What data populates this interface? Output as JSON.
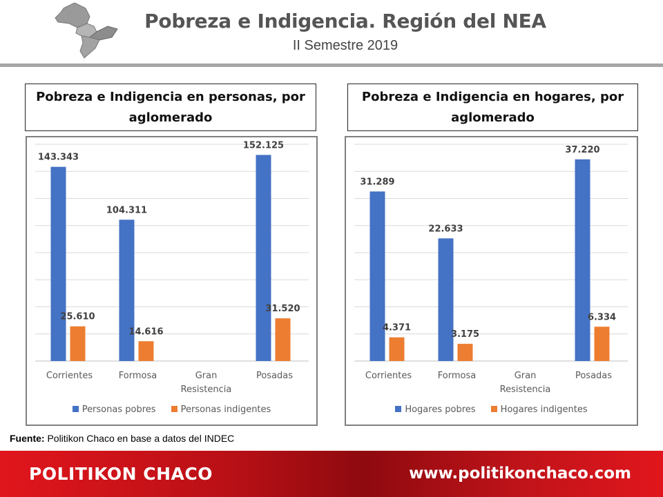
{
  "header": {
    "title": "Pobreza e Indigencia. Región del NEA",
    "subtitle": "II Semestre 2019"
  },
  "colors": {
    "series_pobres": "#4472c4",
    "series_indigentes": "#ed7d31",
    "footer": "#c0141a"
  },
  "chart_data": [
    {
      "type": "bar",
      "title": "Pobreza e Indigencia en personas, por aglomerado",
      "categories": [
        "Corrientes",
        "Formosa",
        "Gran Resistencia",
        "Posadas"
      ],
      "series": [
        {
          "name": "Personas pobres",
          "values": [
            143343,
            104311,
            null,
            152125
          ],
          "labels": [
            "143.343",
            "104.311",
            "",
            "152.125"
          ]
        },
        {
          "name": "Personas indigentes",
          "values": [
            25610,
            14616,
            null,
            31520
          ],
          "labels": [
            "25.610",
            "14.616",
            "",
            "31.520"
          ]
        }
      ],
      "ylim": [
        0,
        160000
      ],
      "grid": true,
      "legend": "bottom"
    },
    {
      "type": "bar",
      "title": "Pobreza e Indigencia en hogares, por aglomerado",
      "categories": [
        "Corrientes",
        "Formosa",
        "Gran Resistencia",
        "Posadas"
      ],
      "series": [
        {
          "name": "Hogares pobres",
          "values": [
            31289,
            22633,
            null,
            37220
          ],
          "labels": [
            "31.289",
            "22.633",
            "",
            "37.220"
          ]
        },
        {
          "name": "Hogares indigentes",
          "values": [
            4371,
            3175,
            null,
            6334
          ],
          "labels": [
            "4.371",
            "3.175",
            "",
            "6.334"
          ]
        }
      ],
      "ylim": [
        0,
        40000
      ],
      "grid": true,
      "legend": "bottom"
    }
  ],
  "source": {
    "label": "Fuente:",
    "text": " Politikon Chaco en base a datos del INDEC"
  },
  "footer": {
    "brand": "POLITIKON CHACO",
    "url": "www.politikonchaco.com"
  },
  "icons": {
    "logo": "nea-region-map-icon"
  }
}
